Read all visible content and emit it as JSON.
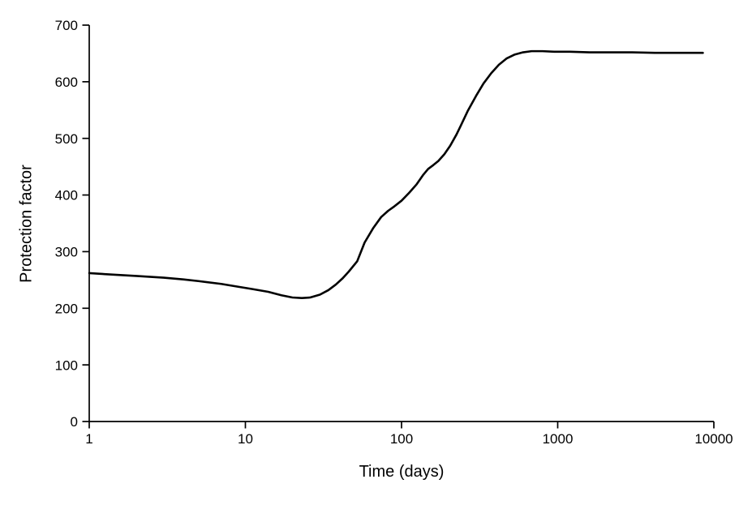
{
  "chart_data": {
    "type": "line",
    "title": "",
    "xlabel": "Time (days)",
    "ylabel": "Protection factor",
    "x_scale": "log",
    "xlim": [
      1,
      10000
    ],
    "ylim": [
      0,
      700
    ],
    "x_ticks": [
      1,
      10,
      100,
      1000,
      10000
    ],
    "x_tick_labels": [
      "1",
      "10",
      "100",
      "1000",
      "10000"
    ],
    "y_ticks": [
      0,
      100,
      200,
      300,
      400,
      500,
      600,
      700
    ],
    "y_tick_labels": [
      "0",
      "100",
      "200",
      "300",
      "400",
      "500",
      "600",
      "700"
    ],
    "grid": false,
    "legend": null,
    "background_color": "#ffffff",
    "axis_color": "#000000",
    "line_color": "#000000",
    "line_width": 2.6,
    "series": [
      {
        "name": "Protection factor",
        "points": [
          [
            1,
            262
          ],
          [
            1.5,
            259
          ],
          [
            2,
            257
          ],
          [
            3,
            254
          ],
          [
            4,
            251
          ],
          [
            5,
            248
          ],
          [
            7,
            243
          ],
          [
            9,
            238
          ],
          [
            11,
            234
          ],
          [
            14,
            229
          ],
          [
            17,
            223
          ],
          [
            20,
            219
          ],
          [
            23,
            218
          ],
          [
            26,
            219
          ],
          [
            30,
            224
          ],
          [
            34,
            232
          ],
          [
            38,
            242
          ],
          [
            42,
            253
          ],
          [
            46,
            265
          ],
          [
            52,
            283
          ],
          [
            58,
            316
          ],
          [
            66,
            342
          ],
          [
            74,
            361
          ],
          [
            82,
            372
          ],
          [
            90,
            380
          ],
          [
            100,
            390
          ],
          [
            112,
            404
          ],
          [
            125,
            419
          ],
          [
            138,
            436
          ],
          [
            148,
            446
          ],
          [
            160,
            453
          ],
          [
            172,
            460
          ],
          [
            188,
            472
          ],
          [
            205,
            487
          ],
          [
            225,
            507
          ],
          [
            240,
            523
          ],
          [
            265,
            548
          ],
          [
            300,
            575
          ],
          [
            335,
            597
          ],
          [
            375,
            615
          ],
          [
            420,
            630
          ],
          [
            470,
            641
          ],
          [
            530,
            648
          ],
          [
            600,
            652
          ],
          [
            680,
            654
          ],
          [
            800,
            654
          ],
          [
            950,
            653
          ],
          [
            1200,
            653
          ],
          [
            1600,
            652
          ],
          [
            2200,
            652
          ],
          [
            3000,
            652
          ],
          [
            4200,
            651
          ],
          [
            6000,
            651
          ],
          [
            8500,
            651
          ]
        ]
      }
    ]
  }
}
